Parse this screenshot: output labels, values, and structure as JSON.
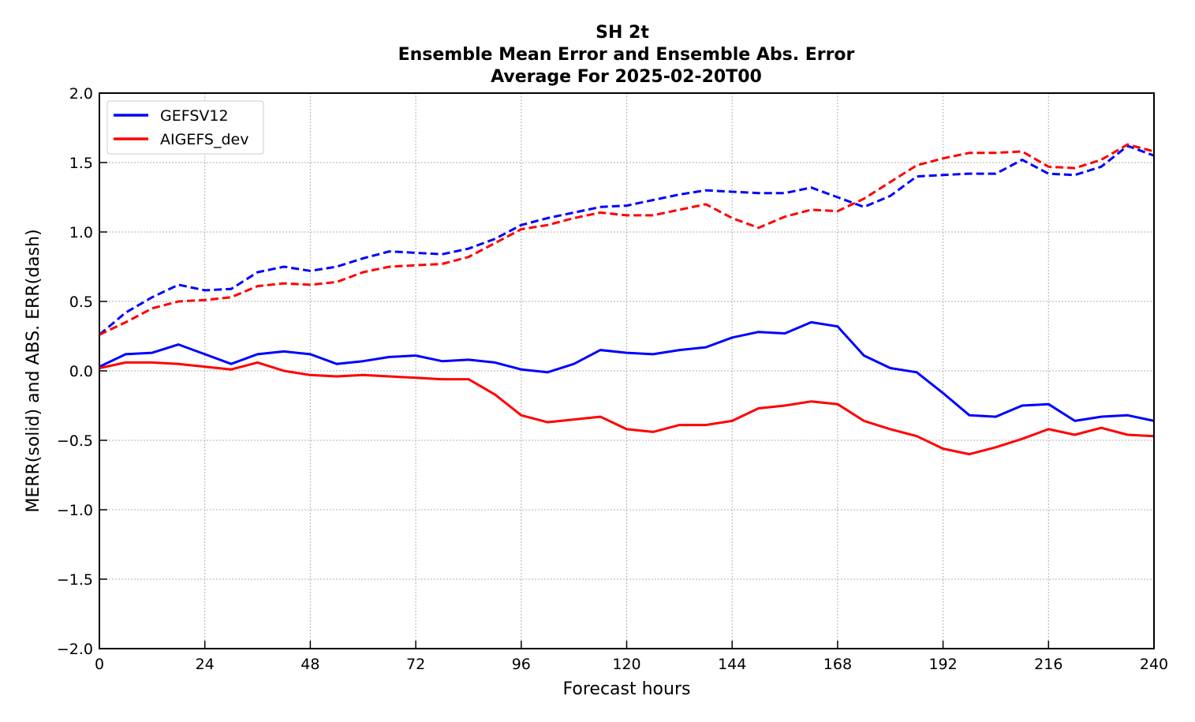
{
  "chart_data": {
    "type": "line",
    "title_lines": [
      "SH 2t",
      "Ensemble Mean Error and Ensemble Abs. Error",
      "Average For 2025-02-20T00"
    ],
    "xlabel": "Forecast hours",
    "ylabel": "MERR(solid) and ABS. ERR(dash)",
    "xlim": [
      0,
      240
    ],
    "ylim": [
      -2.0,
      2.0
    ],
    "xticks": [
      0,
      24,
      48,
      72,
      96,
      120,
      144,
      168,
      192,
      216,
      240
    ],
    "xtick_labels": [
      "0",
      "24",
      "48",
      "72",
      "96",
      "120",
      "144",
      "168",
      "192",
      "216",
      "240"
    ],
    "yticks": [
      -2.0,
      -1.5,
      -1.0,
      -0.5,
      0.0,
      0.5,
      1.0,
      1.5,
      2.0
    ],
    "ytick_labels": [
      "−2.0",
      "−1.5",
      "−1.0",
      "−0.5",
      "0.0",
      "0.5",
      "1.0",
      "1.5",
      "2.0"
    ],
    "grid": true,
    "legend_position": "top-left",
    "x": [
      0,
      6,
      12,
      18,
      24,
      30,
      36,
      42,
      48,
      54,
      60,
      66,
      72,
      78,
      84,
      90,
      96,
      102,
      108,
      114,
      120,
      126,
      132,
      138,
      144,
      150,
      156,
      162,
      168,
      174,
      180,
      186,
      192,
      198,
      204,
      210,
      216,
      222,
      228,
      234,
      240
    ],
    "series": [
      {
        "name": "GEFSV12",
        "color": "#0000ff",
        "style": "solid",
        "values": [
          0.03,
          0.12,
          0.13,
          0.19,
          0.12,
          0.05,
          0.12,
          0.14,
          0.12,
          0.05,
          0.07,
          0.1,
          0.11,
          0.07,
          0.08,
          0.06,
          0.01,
          -0.01,
          0.05,
          0.15,
          0.13,
          0.12,
          0.15,
          0.17,
          0.24,
          0.28,
          0.27,
          0.35,
          0.32,
          0.11,
          0.02,
          -0.01,
          -0.16,
          -0.32,
          -0.33,
          -0.25,
          -0.24,
          -0.36,
          -0.33,
          -0.32,
          -0.36
        ]
      },
      {
        "name": "AIGEFS_dev",
        "color": "#ff0000",
        "style": "solid",
        "values": [
          0.02,
          0.06,
          0.06,
          0.05,
          0.03,
          0.01,
          0.06,
          0.0,
          -0.03,
          -0.04,
          -0.03,
          -0.04,
          -0.05,
          -0.06,
          -0.06,
          -0.17,
          -0.32,
          -0.37,
          -0.35,
          -0.33,
          -0.42,
          -0.44,
          -0.39,
          -0.39,
          -0.36,
          -0.27,
          -0.25,
          -0.22,
          -0.24,
          -0.36,
          -0.42,
          -0.47,
          -0.56,
          -0.6,
          -0.55,
          -0.49,
          -0.42,
          -0.46,
          -0.41,
          -0.46,
          -0.47
        ]
      },
      {
        "name": "",
        "color": "#0000ff",
        "style": "dashed",
        "values": [
          0.26,
          0.42,
          0.53,
          0.62,
          0.58,
          0.59,
          0.71,
          0.75,
          0.72,
          0.75,
          0.81,
          0.86,
          0.85,
          0.84,
          0.88,
          0.95,
          1.05,
          1.1,
          1.14,
          1.18,
          1.19,
          1.23,
          1.27,
          1.3,
          1.29,
          1.28,
          1.28,
          1.32,
          1.25,
          1.18,
          1.26,
          1.4,
          1.41,
          1.42,
          1.42,
          1.52,
          1.42,
          1.41,
          1.47,
          1.62,
          1.55
        ]
      },
      {
        "name": "",
        "color": "#ff0000",
        "style": "dashed",
        "values": [
          0.26,
          0.35,
          0.45,
          0.5,
          0.51,
          0.53,
          0.61,
          0.63,
          0.62,
          0.64,
          0.71,
          0.75,
          0.76,
          0.77,
          0.82,
          0.92,
          1.02,
          1.05,
          1.1,
          1.14,
          1.12,
          1.12,
          1.16,
          1.2,
          1.1,
          1.03,
          1.11,
          1.16,
          1.15,
          1.24,
          1.36,
          1.48,
          1.53,
          1.57,
          1.57,
          1.58,
          1.47,
          1.46,
          1.52,
          1.63,
          1.58
        ]
      }
    ]
  }
}
